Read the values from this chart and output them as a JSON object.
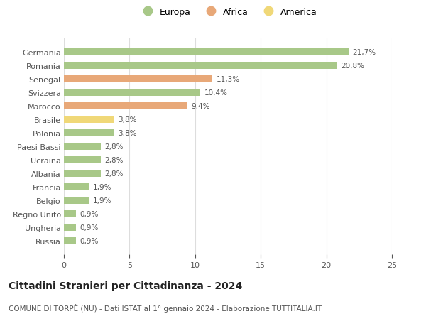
{
  "categories": [
    "Russia",
    "Ungheria",
    "Regno Unito",
    "Belgio",
    "Francia",
    "Albania",
    "Ucraina",
    "Paesi Bassi",
    "Polonia",
    "Brasile",
    "Marocco",
    "Svizzera",
    "Senegal",
    "Romania",
    "Germania"
  ],
  "values": [
    0.9,
    0.9,
    0.9,
    1.9,
    1.9,
    2.8,
    2.8,
    2.8,
    3.8,
    3.8,
    9.4,
    10.4,
    11.3,
    20.8,
    21.7
  ],
  "labels": [
    "0,9%",
    "0,9%",
    "0,9%",
    "1,9%",
    "1,9%",
    "2,8%",
    "2,8%",
    "2,8%",
    "3,8%",
    "3,8%",
    "9,4%",
    "10,4%",
    "11,3%",
    "20,8%",
    "21,7%"
  ],
  "colors": [
    "#a8c888",
    "#a8c888",
    "#a8c888",
    "#a8c888",
    "#a8c888",
    "#a8c888",
    "#a8c888",
    "#a8c888",
    "#a8c888",
    "#f0d878",
    "#e8a878",
    "#a8c888",
    "#e8a878",
    "#a8c888",
    "#a8c888"
  ],
  "legend_labels": [
    "Europa",
    "Africa",
    "America"
  ],
  "legend_colors": [
    "#a8c888",
    "#e8a878",
    "#f0d878"
  ],
  "title": "Cittadini Stranieri per Cittadinanza - 2024",
  "subtitle": "COMUNE DI TORPÈ (NU) - Dati ISTAT al 1° gennaio 2024 - Elaborazione TUTTITALIA.IT",
  "xlim": [
    0,
    25
  ],
  "xticks": [
    0,
    5,
    10,
    15,
    20,
    25
  ],
  "background_color": "#ffffff",
  "grid_color": "#dddddd",
  "bar_height": 0.55,
  "label_fontsize": 7.5,
  "title_fontsize": 10,
  "subtitle_fontsize": 7.5,
  "tick_fontsize": 8
}
